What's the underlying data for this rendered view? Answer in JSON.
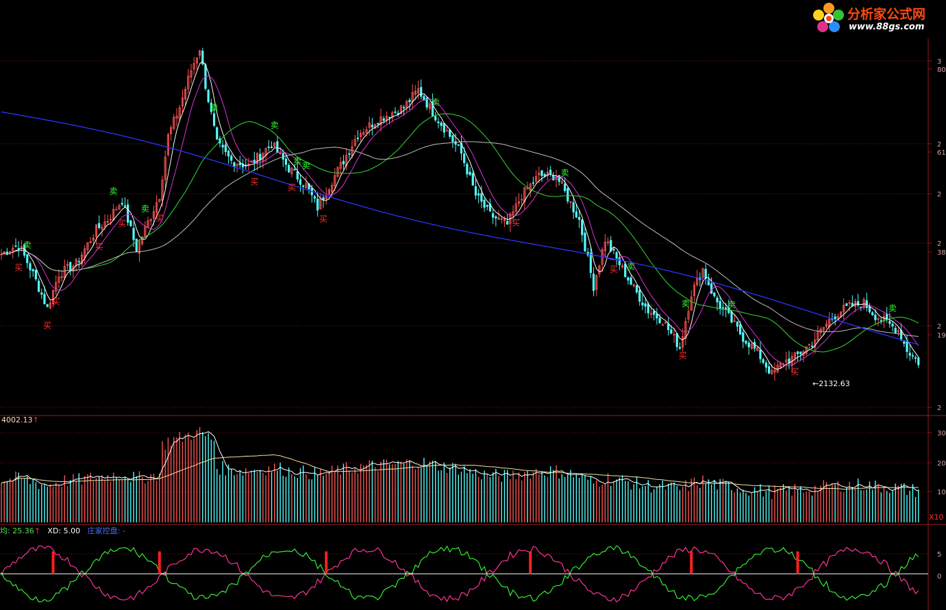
{
  "logo": {
    "title": "分析家公式网",
    "url": "www.88gs.com"
  },
  "colors": {
    "background": "#000000",
    "frame": "#a01818",
    "grid": "#8a1c1c",
    "up_candle": "#ff5555",
    "down_candle": "#54ffff",
    "ma_short": "#ffffff",
    "ma_mid": "#dd33dd",
    "ma_long": "#33dd33",
    "ma_longer": "#c0c0c0",
    "ma_longest": "#2a35ff",
    "buy_signal": "#ff3030",
    "sell_signal": "#30ff30",
    "indicator_up": "#ff3399",
    "indicator_down": "#33ee33",
    "arrow": "#ff2020"
  },
  "price_axis_ticks": [
    "3",
    "80",
    "2",
    "61",
    "2",
    "2",
    "38",
    "2",
    "19",
    "2"
  ],
  "volume_axis_ticks": [
    "30",
    "20",
    "10"
  ],
  "indicator_axis_ticks": [
    "5",
    "0"
  ],
  "volume_panel": {
    "legend": "4002.13",
    "legend_arrow": "↑",
    "unit": "X10"
  },
  "indicator_panel": {
    "avg_label": "均: 25.36",
    "avg_arrow": "↑",
    "xd_label": "XD: 5.00",
    "name": "庄家控盘:",
    "name_suffix": " -"
  },
  "annotation": {
    "low_price": "2132.63",
    "arrow": "←"
  },
  "signals": {
    "buy_text": "买",
    "sell_text": "卖"
  },
  "chart_data": {
    "type": "candlestick",
    "count": 320,
    "price_range": [
      1950,
      3480
    ],
    "price_anchor_points": [
      [
        0,
        2600
      ],
      [
        6,
        2640
      ],
      [
        11,
        2520
      ],
      [
        16,
        2380
      ],
      [
        20,
        2520
      ],
      [
        26,
        2560
      ],
      [
        33,
        2700
      ],
      [
        37,
        2740
      ],
      [
        42,
        2820
      ],
      [
        47,
        2620
      ],
      [
        55,
        2840
      ],
      [
        58,
        3080
      ],
      [
        62,
        3200
      ],
      [
        66,
        3350
      ],
      [
        69,
        3440
      ],
      [
        71,
        3290
      ],
      [
        75,
        3050
      ],
      [
        80,
        2980
      ],
      [
        86,
        2960
      ],
      [
        94,
        3050
      ],
      [
        100,
        2950
      ],
      [
        106,
        2880
      ],
      [
        110,
        2790
      ],
      [
        114,
        2880
      ],
      [
        118,
        2960
      ],
      [
        124,
        3090
      ],
      [
        131,
        3150
      ],
      [
        140,
        3200
      ],
      [
        145,
        3270
      ],
      [
        150,
        3180
      ],
      [
        155,
        3100
      ],
      [
        160,
        3010
      ],
      [
        165,
        2840
      ],
      [
        170,
        2760
      ],
      [
        176,
        2720
      ],
      [
        181,
        2840
      ],
      [
        187,
        2920
      ],
      [
        193,
        2920
      ],
      [
        197,
        2830
      ],
      [
        201,
        2740
      ],
      [
        206,
        2470
      ],
      [
        210,
        2660
      ],
      [
        215,
        2560
      ],
      [
        220,
        2460
      ],
      [
        225,
        2370
      ],
      [
        230,
        2330
      ],
      [
        236,
        2220
      ],
      [
        240,
        2440
      ],
      [
        244,
        2540
      ],
      [
        248,
        2420
      ],
      [
        252,
        2360
      ],
      [
        258,
        2260
      ],
      [
        263,
        2200
      ],
      [
        268,
        2110
      ],
      [
        272,
        2160
      ],
      [
        276,
        2180
      ],
      [
        282,
        2240
      ],
      [
        288,
        2330
      ],
      [
        292,
        2370
      ],
      [
        296,
        2390
      ],
      [
        300,
        2400
      ],
      [
        304,
        2350
      ],
      [
        308,
        2320
      ],
      [
        312,
        2290
      ],
      [
        315,
        2210
      ],
      [
        319,
        2160
      ]
    ],
    "buy_signals": [
      6,
      16,
      19,
      34,
      42,
      55,
      88,
      101,
      112,
      179,
      213,
      237,
      276
    ],
    "sell_signals": [
      9,
      39,
      50,
      74,
      95,
      103,
      106,
      151,
      196,
      219,
      238,
      254,
      310
    ],
    "volume_range": [
      0,
      3400
    ],
    "indicator_range": [
      -7,
      8
    ],
    "indicator_arrow_bars": [
      18,
      55,
      113,
      184,
      240,
      277
    ]
  }
}
